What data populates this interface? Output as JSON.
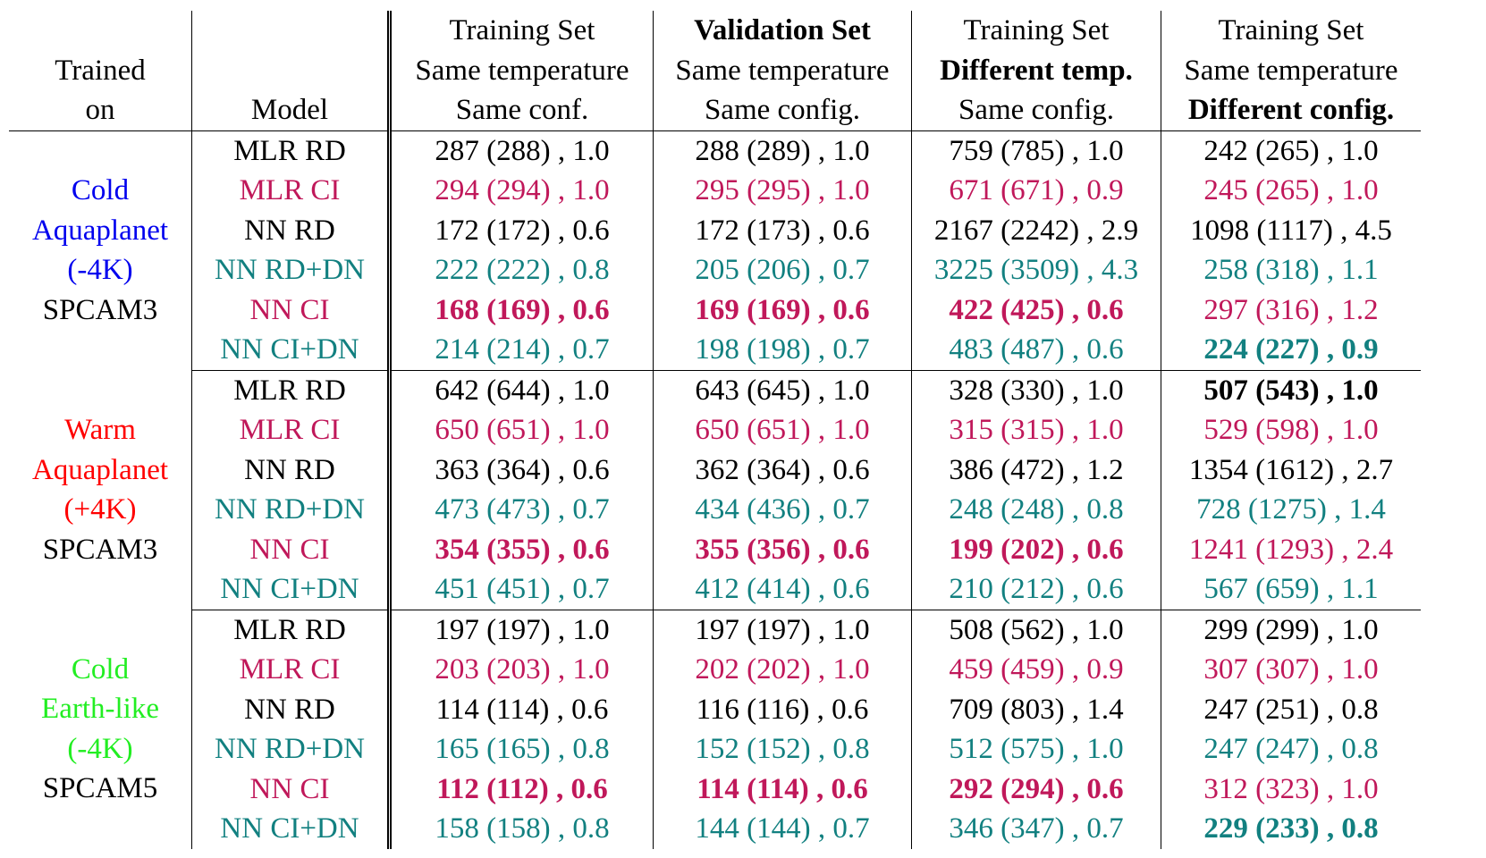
{
  "header": {
    "columns": [
      [
        "Trained",
        "on"
      ],
      [
        "Model"
      ],
      [
        "Training Set",
        "Same temperature",
        "Same conf."
      ],
      [
        {
          "text": "Validation Set",
          "bold": true
        },
        "Same temperature",
        "Same config."
      ],
      [
        "Training Set",
        {
          "text": "Different temp.",
          "bold": true
        },
        "Same config."
      ],
      [
        "Training Set",
        "Same temperature",
        {
          "text": "Different config.",
          "bold": true
        }
      ]
    ]
  },
  "groups": [
    {
      "trained_on": [
        "Cold",
        "Aquaplanet",
        "(-4K)",
        "SPCAM3"
      ],
      "color": "#0000ee",
      "rows": [
        {
          "model": "MLR RD",
          "color": "#000000",
          "cells": [
            "287 (288) , 1.0",
            "288 (289) , 1.0",
            "759 (785) , 1.0",
            "242 (265) , 1.0"
          ]
        },
        {
          "model": "MLR CI",
          "color": "#c0185a",
          "cells": [
            "294 (294) , 1.0",
            "295 (295) , 1.0",
            "671 (671) , 0.9",
            "245 (265) , 1.0"
          ]
        },
        {
          "model": "NN RD",
          "color": "#000000",
          "cells": [
            "172 (172) , 0.6",
            "172 (173) , 0.6",
            "2167 (2242) , 2.9",
            "1098 (1117) , 4.5"
          ]
        },
        {
          "model": "NN RD+DN",
          "color": "#128080",
          "cells": [
            "222 (222) , 0.8",
            "205 (206) , 0.7",
            "3225 (3509) , 4.3",
            "258 (318) , 1.1"
          ]
        },
        {
          "model": "NN CI",
          "color": "#c0185a",
          "cells": [
            "168 (169) , 0.6",
            "169 (169) , 0.6",
            "422 (425) , 0.6",
            "297 (316) , 1.2"
          ],
          "bold": [
            true,
            true,
            true,
            false
          ]
        },
        {
          "model": "NN CI+DN",
          "color": "#128080",
          "cells": [
            "214 (214) , 0.7",
            "198 (198) , 0.7",
            "483 (487) , 0.6",
            "224 (227) , 0.9"
          ],
          "bold": [
            false,
            false,
            false,
            true
          ]
        }
      ]
    },
    {
      "trained_on": [
        "Warm",
        "Aquaplanet",
        "(+4K)",
        "SPCAM3"
      ],
      "color": "#ff0000",
      "rows": [
        {
          "model": "MLR RD",
          "color": "#000000",
          "cells": [
            "642 (644) , 1.0",
            "643 (645) , 1.0",
            "328 (330) , 1.0",
            "507 (543) , 1.0"
          ],
          "bold": [
            false,
            false,
            false,
            true
          ]
        },
        {
          "model": "MLR CI",
          "color": "#c0185a",
          "cells": [
            "650 (651) , 1.0",
            "650 (651) , 1.0",
            "315 (315) , 1.0",
            "529 (598) , 1.0"
          ]
        },
        {
          "model": "NN RD",
          "color": "#000000",
          "cells": [
            "363 (364) , 0.6",
            "362 (364) , 0.6",
            "386 (472) , 1.2",
            "1354 (1612) , 2.7"
          ]
        },
        {
          "model": "NN RD+DN",
          "color": "#128080",
          "cells": [
            "473 (473) , 0.7",
            "434 (436) , 0.7",
            "248 (248) , 0.8",
            "728 (1275) , 1.4"
          ]
        },
        {
          "model": "NN CI",
          "color": "#c0185a",
          "cells": [
            "354 (355) , 0.6",
            "355 (356) , 0.6",
            "199 (202) , 0.6",
            "1241 (1293) , 2.4"
          ],
          "bold": [
            true,
            true,
            true,
            false
          ]
        },
        {
          "model": "NN CI+DN",
          "color": "#128080",
          "cells": [
            "451 (451) , 0.7",
            "412 (414) , 0.6",
            "210 (212) , 0.6",
            "567 (659) , 1.1"
          ]
        }
      ]
    },
    {
      "trained_on": [
        "Cold",
        "Earth-like",
        "(-4K)",
        "SPCAM5"
      ],
      "color": "#22ee22",
      "rows": [
        {
          "model": "MLR RD",
          "color": "#000000",
          "cells": [
            "197 (197) , 1.0",
            "197 (197) , 1.0",
            "508 (562) , 1.0",
            "299 (299) , 1.0"
          ]
        },
        {
          "model": "MLR CI",
          "color": "#c0185a",
          "cells": [
            "203 (203) , 1.0",
            "202 (202) , 1.0",
            "459 (459) , 0.9",
            "307 (307) , 1.0"
          ]
        },
        {
          "model": "NN RD",
          "color": "#000000",
          "cells": [
            "114 (114) , 0.6",
            "116 (116) , 0.6",
            "709 (803) , 1.4",
            "247 (251) , 0.8"
          ]
        },
        {
          "model": "NN RD+DN",
          "color": "#128080",
          "cells": [
            "165 (165) , 0.8",
            "152 (152) , 0.8",
            "512 (575) , 1.0",
            "247 (247) , 0.8"
          ]
        },
        {
          "model": "NN CI",
          "color": "#c0185a",
          "cells": [
            "112 (112) , 0.6",
            "114 (114) , 0.6",
            "292 (294) , 0.6",
            "312 (323) , 1.0"
          ],
          "bold": [
            true,
            true,
            true,
            false
          ]
        },
        {
          "model": "NN CI+DN",
          "color": "#128080",
          "cells": [
            "158 (158) , 0.8",
            "144 (144) , 0.7",
            "346 (347) , 0.7",
            "229 (233) , 0.8"
          ],
          "bold": [
            false,
            false,
            false,
            true
          ]
        }
      ]
    }
  ]
}
